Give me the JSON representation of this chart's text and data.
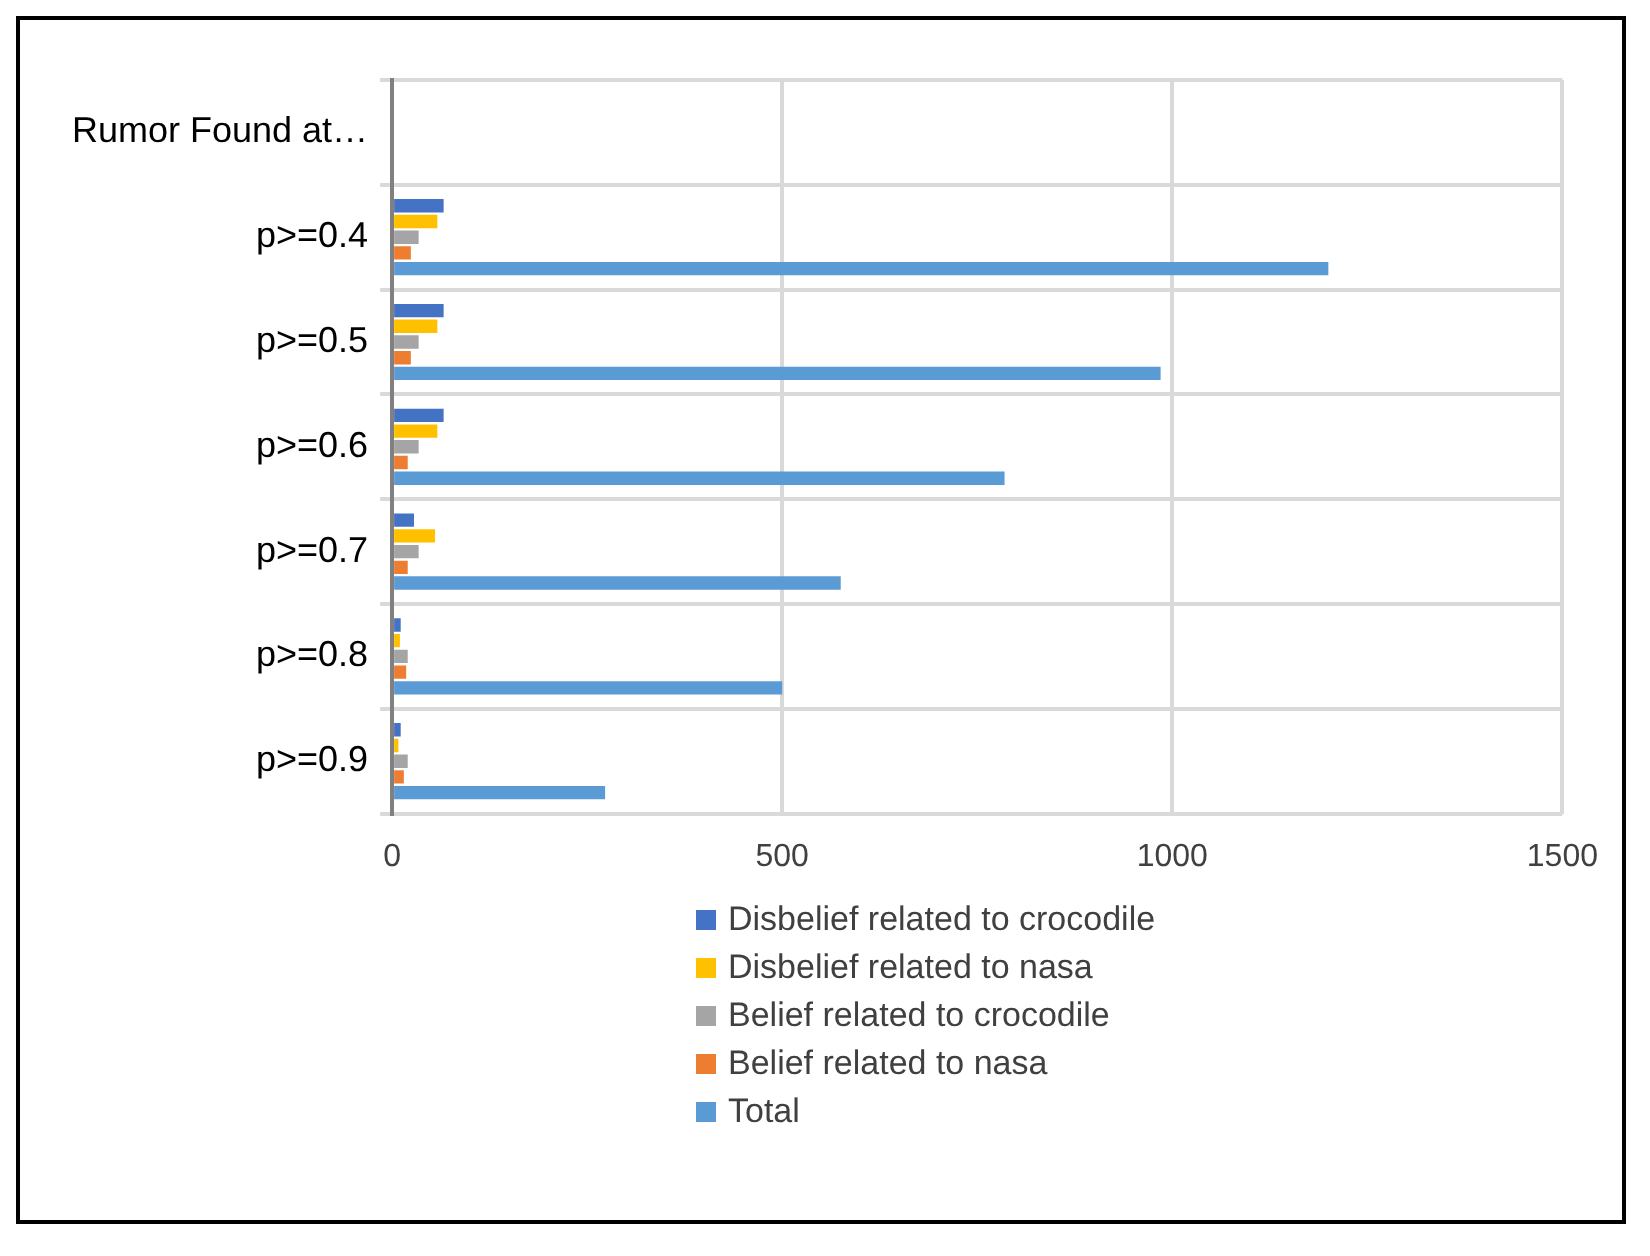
{
  "chart_data": {
    "type": "bar",
    "orientation": "horizontal",
    "categories": [
      "Rumor Found at…",
      "p>=0.4",
      "p>=0.5",
      "p>=0.6",
      "p>=0.7",
      "p>=0.8",
      "p>=0.9"
    ],
    "series": [
      {
        "name": "Disbelief related to crocodile",
        "color": "#4472c4",
        "values": [
          null,
          66,
          66,
          66,
          28,
          11,
          11
        ]
      },
      {
        "name": "Disbelief related to nasa",
        "color": "#ffc000",
        "values": [
          null,
          58,
          58,
          58,
          55,
          10,
          8
        ]
      },
      {
        "name": "Belief related to crocodile",
        "color": "#a5a5a5",
        "values": [
          null,
          34,
          34,
          34,
          34,
          20,
          20
        ]
      },
      {
        "name": "Belief related to nasa",
        "color": "#ed7d31",
        "values": [
          null,
          24,
          24,
          20,
          20,
          18,
          15
        ]
      },
      {
        "name": "Total",
        "color": "#5b9bd5",
        "values": [
          null,
          1200,
          985,
          785,
          575,
          500,
          273
        ]
      }
    ],
    "xlim": [
      0,
      1500
    ],
    "xticks": [
      0,
      500,
      1000,
      1500
    ],
    "grid": true,
    "legend": "bottom"
  }
}
